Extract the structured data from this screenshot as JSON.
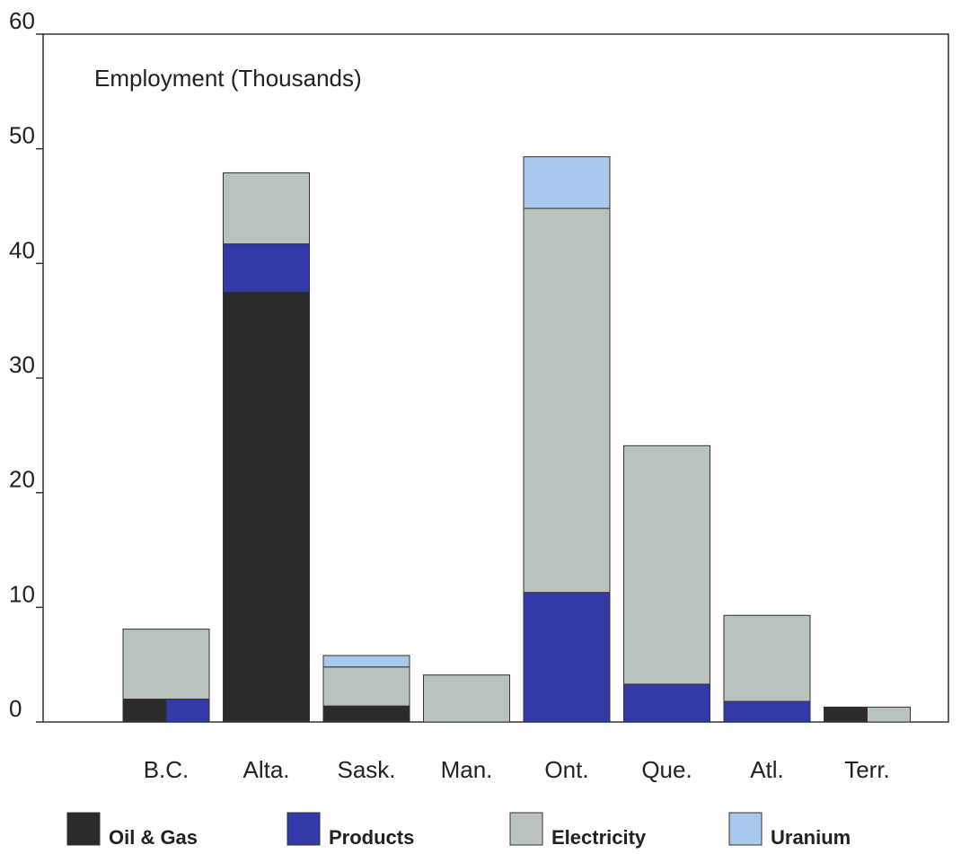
{
  "chart_data": {
    "type": "bar",
    "stacked": true,
    "ylabel": "Employment (Thousands)",
    "ylim": [
      0,
      60
    ],
    "yticks": [
      0,
      10,
      20,
      30,
      40,
      50,
      60
    ],
    "categories": [
      "B.C.",
      "Alta.",
      "Sask.",
      "Man.",
      "Ont.",
      "Que.",
      "Atl.",
      "Terr."
    ],
    "series": [
      {
        "name": "Oil & Gas",
        "color": "#2b2b2b",
        "values": [
          2.0,
          37.5,
          1.4,
          0,
          0,
          0,
          0,
          1.3
        ]
      },
      {
        "name": "Products",
        "color": "#3239a8",
        "values": [
          2.0,
          4.2,
          0,
          0,
          11.3,
          3.3,
          1.8,
          0
        ]
      },
      {
        "name": "Electricity",
        "color": "#b9c2bc",
        "values": [
          6.1,
          6.2,
          3.4,
          4.1,
          33.5,
          20.8,
          7.5,
          1.3
        ]
      },
      {
        "name": "Uranium",
        "color": "#a9c8ee",
        "values": [
          0,
          0,
          1.0,
          0,
          4.5,
          0,
          0,
          0
        ]
      }
    ],
    "split_stacks": [
      {
        "category": "B.C.",
        "left": "Oil & Gas",
        "right": "Products"
      },
      {
        "category": "Terr.",
        "left": "Oil & Gas",
        "right": "Electricity"
      }
    ],
    "grid": false,
    "legend_position": "bottom"
  }
}
